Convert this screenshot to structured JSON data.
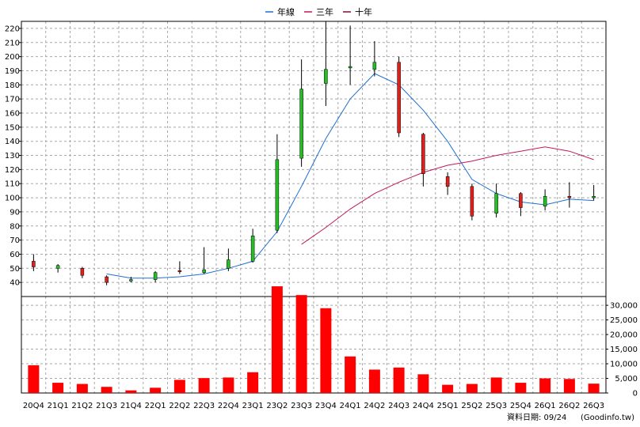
{
  "legend": [
    {
      "label": "年線",
      "color": "#1f6fd1"
    },
    {
      "label": "三年",
      "color": "#c0185c"
    },
    {
      "label": "十年",
      "color": "#7a1030"
    }
  ],
  "footer": {
    "date_text": "資料日期: 09/24",
    "source_text": "(Goodinfo.tw)"
  },
  "chart_data": {
    "type": "candlestick",
    "categories": [
      "20Q4",
      "21Q1",
      "21Q2",
      "21Q3",
      "21Q4",
      "22Q1",
      "22Q2",
      "22Q3",
      "22Q4",
      "23Q1",
      "23Q2",
      "23Q3",
      "23Q4",
      "24Q1",
      "24Q2",
      "24Q3",
      "24Q4",
      "25Q1",
      "25Q2",
      "25Q3",
      "25Q4",
      "26Q1",
      "26Q2",
      "26Q3"
    ],
    "price_axis": {
      "min": 30,
      "max": 225,
      "ticks": [
        40,
        50,
        60,
        70,
        80,
        90,
        100,
        110,
        120,
        130,
        140,
        150,
        160,
        170,
        180,
        190,
        200,
        210,
        220
      ]
    },
    "volume_axis": {
      "min": 0,
      "max": 33000,
      "ticks": [
        0,
        5000,
        10000,
        15000,
        20000,
        25000,
        30000
      ],
      "tick_labels": [
        "0",
        "5,000",
        "10,000",
        "15,000",
        "20,000",
        "25,000",
        "30,000"
      ]
    },
    "candles": [
      {
        "open": 51,
        "close": 55,
        "high": 60,
        "low": 48
      },
      {
        "open": 52,
        "close": 50,
        "high": 53,
        "low": 47
      },
      {
        "open": 45,
        "close": 50,
        "high": 51,
        "low": 43
      },
      {
        "open": 40,
        "close": 44,
        "high": 45,
        "low": 38
      },
      {
        "open": 42,
        "close": 41,
        "high": 44,
        "low": 40
      },
      {
        "open": 47,
        "close": 42,
        "high": 48,
        "low": 40
      },
      {
        "open": 48,
        "close": 48,
        "high": 55,
        "low": 46
      },
      {
        "open": 49,
        "close": 47,
        "high": 65,
        "low": 46
      },
      {
        "open": 56,
        "close": 50,
        "high": 64,
        "low": 48
      },
      {
        "open": 73,
        "close": 55,
        "high": 78,
        "low": 54
      },
      {
        "open": 127,
        "close": 77,
        "high": 145,
        "low": 75
      },
      {
        "open": 177,
        "close": 128,
        "high": 198,
        "low": 122
      },
      {
        "open": 191,
        "close": 181,
        "high": 225,
        "low": 165
      },
      {
        "open": 193,
        "close": 192,
        "high": 222,
        "low": 180
      },
      {
        "open": 196,
        "close": 191,
        "high": 211,
        "low": 186
      },
      {
        "open": 146,
        "close": 196,
        "high": 200,
        "low": 143
      },
      {
        "open": 117,
        "close": 145,
        "high": 146,
        "low": 108
      },
      {
        "open": 108,
        "close": 115,
        "high": 118,
        "low": 102
      },
      {
        "open": 87,
        "close": 108,
        "high": 110,
        "low": 84
      },
      {
        "open": 103,
        "close": 89,
        "high": 110,
        "low": 86
      },
      {
        "open": 93,
        "close": 103,
        "high": 104,
        "low": 87
      },
      {
        "open": 101,
        "close": 94,
        "high": 106,
        "low": 91
      },
      {
        "open": 100,
        "close": 101,
        "high": 111,
        "low": 93
      },
      {
        "open": 101,
        "close": 100,
        "high": 109,
        "low": 98
      }
    ],
    "volumes": [
      9500,
      3500,
      3100,
      2100,
      900,
      1800,
      4500,
      5100,
      5300,
      7100,
      36500,
      33500,
      29000,
      12500,
      8000,
      8700,
      6400,
      2800,
      3100,
      5300,
      3500,
      5000,
      4800,
      3200
    ],
    "series": [
      {
        "name": "年線",
        "color": "#1f6fd1",
        "values": [
          null,
          null,
          null,
          46,
          43,
          43,
          44,
          46,
          50,
          55,
          76,
          108,
          142,
          170,
          188,
          180,
          162,
          140,
          113,
          103,
          97,
          95,
          99,
          98
        ]
      },
      {
        "name": "三年",
        "color": "#c0185c",
        "values": [
          null,
          null,
          null,
          null,
          null,
          null,
          null,
          null,
          null,
          null,
          null,
          67,
          79,
          92,
          103,
          111,
          118,
          123,
          126,
          130,
          133,
          136,
          133,
          127
        ]
      }
    ],
    "colors": {
      "up": "#e0201c",
      "down": "#22c022",
      "volume": "#ff0000"
    }
  }
}
